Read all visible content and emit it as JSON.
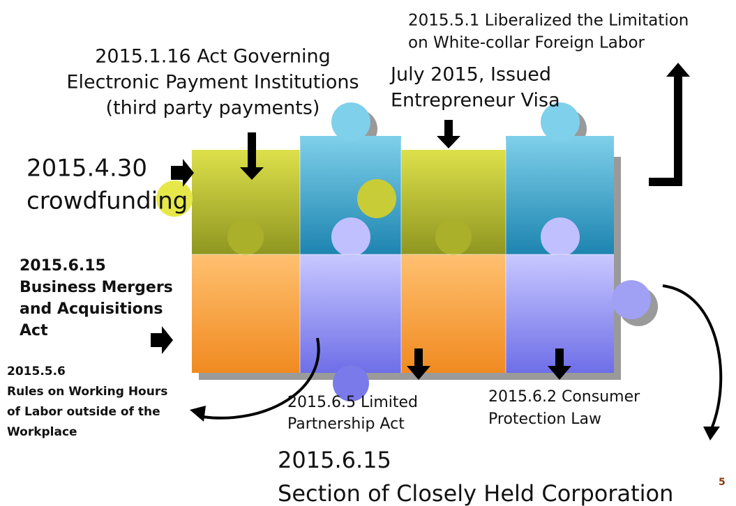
{
  "labels": [
    {
      "lines": [
        "2015.5.1 Liberalized the Limitation",
        "on White-collar Foreign Labor"
      ]
    },
    {
      "lines": [
        "2015.1.16  Act Governing",
        "Electronic Payment Institutions",
        "(third party payments)"
      ]
    },
    {
      "lines": [
        "July 2015, Issued",
        "Entrepreneur Visa"
      ]
    },
    {
      "lines": [
        "2015.4.30",
        "crowdfunding"
      ]
    },
    {
      "lines": [
        "2015.6.15",
        "Business Mergers",
        "and Acquisitions",
        "Act"
      ]
    },
    {
      "lines": [
        "2015.5.6",
        "Rules on Working Hours",
        "of Labor outside of  the",
        "Workplace"
      ]
    },
    {
      "lines": [
        "2015.6.5  Limited",
        "Partnership Act"
      ]
    },
    {
      "lines": [
        "2015.6.2  Consumer",
        "Protection Law"
      ]
    },
    {
      "lines": [
        "2015.6.15",
        "Section of Closely Held Corporation"
      ]
    }
  ],
  "page_number": "5"
}
